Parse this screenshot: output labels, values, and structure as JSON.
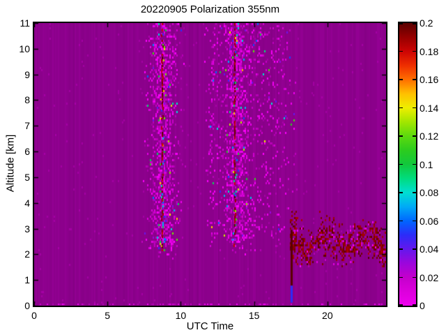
{
  "chart_data": {
    "type": "heatmap",
    "title": "20220905 Polarization 355nm",
    "xlabel": "UTC Time",
    "ylabel": "Altitude [km]",
    "xlim": [
      0,
      24
    ],
    "ylim": [
      0,
      11
    ],
    "x_ticks": [
      0,
      5,
      10,
      15,
      20
    ],
    "x_tick_labels": [
      "0",
      "5",
      "10",
      "15",
      "20"
    ],
    "y_ticks": [
      0,
      1,
      2,
      3,
      4,
      5,
      6,
      7,
      8,
      9,
      10,
      11
    ],
    "y_tick_labels": [
      "0",
      "1",
      "2",
      "3",
      "4",
      "5",
      "6",
      "7",
      "8",
      "9",
      "10",
      "11"
    ],
    "grid": false,
    "background_value_color": "#8B008B",
    "noise_seed": 20220905,
    "colorbar": {
      "position": "right",
      "min": 0,
      "max": 0.2,
      "ticks": [
        0,
        0.02,
        0.04,
        0.06,
        0.08,
        0.1,
        0.12,
        0.14,
        0.16,
        0.18,
        0.2
      ],
      "tick_labels": [
        "0",
        "0.02",
        "0.04",
        "0.06",
        "0.08",
        "0.1",
        "0.12",
        "0.14",
        "0.16",
        "0.18",
        "0.2"
      ],
      "gradient_stops": [
        {
          "at": 0.0,
          "color": "#ee00ee"
        },
        {
          "at": 0.05,
          "color": "#dc00dc"
        },
        {
          "at": 0.1,
          "color": "#c400cc"
        },
        {
          "at": 0.15,
          "color": "#9c06dc"
        },
        {
          "at": 0.2,
          "color": "#6418ec"
        },
        {
          "at": 0.25,
          "color": "#2c2cf8"
        },
        {
          "at": 0.3,
          "color": "#0066ff"
        },
        {
          "at": 0.35,
          "color": "#00aaf6"
        },
        {
          "at": 0.4,
          "color": "#00ded2"
        },
        {
          "at": 0.45,
          "color": "#00dc7e"
        },
        {
          "at": 0.5,
          "color": "#12c83c"
        },
        {
          "at": 0.55,
          "color": "#2ccc1e"
        },
        {
          "at": 0.6,
          "color": "#5cda0e"
        },
        {
          "at": 0.65,
          "color": "#a2e600"
        },
        {
          "at": 0.7,
          "color": "#eeee00"
        },
        {
          "at": 0.75,
          "color": "#ffc000"
        },
        {
          "at": 0.8,
          "color": "#ff6e00"
        },
        {
          "at": 0.85,
          "color": "#ee2e00"
        },
        {
          "at": 0.9,
          "color": "#cc0404"
        },
        {
          "at": 0.95,
          "color": "#960000"
        },
        {
          "at": 1.0,
          "color": "#5a0000"
        }
      ]
    },
    "features": {
      "background": {
        "value": 0.0,
        "description": "uniform near-zero depolarization purple field with faint vertical striping"
      },
      "plumes": [
        {
          "name": "virga-plume-1",
          "x_center": 8.75,
          "x_sigma": 0.55,
          "strength": 1.0,
          "alt_bottom_km": 1.7,
          "alt_top_km": 11,
          "core_line": true,
          "core_values": [
            0.18,
            0.2
          ],
          "speckle_values": [
            0.005,
            0.16
          ]
        },
        {
          "name": "faint-plume",
          "x_center": 12.2,
          "x_sigma": 0.28,
          "strength": 0.3,
          "alt_bottom_km": 2.0,
          "alt_top_km": 11,
          "core_line": false,
          "core_values": [
            0,
            0
          ],
          "speckle_values": [
            0.005,
            0.08
          ]
        },
        {
          "name": "virga-plume-2",
          "x_center": 13.7,
          "x_sigma": 0.5,
          "strength": 1.0,
          "alt_bottom_km": 1.7,
          "alt_top_km": 11,
          "core_line": true,
          "core_values": [
            0.18,
            0.2
          ],
          "speckle_values": [
            0.005,
            0.16
          ]
        },
        {
          "name": "faint-band-1",
          "x_center": 15.2,
          "x_sigma": 0.9,
          "strength": 0.22,
          "alt_bottom_km": 1.9,
          "alt_top_km": 11,
          "core_line": false,
          "core_values": [
            0,
            0
          ],
          "speckle_values": [
            0.005,
            0.05
          ]
        },
        {
          "name": "faint-band-2",
          "x_center": 16.9,
          "x_sigma": 0.5,
          "strength": 0.15,
          "alt_bottom_km": 1.9,
          "alt_top_km": 11,
          "core_line": false,
          "core_values": [
            0,
            0
          ],
          "speckle_values": [
            0.005,
            0.05
          ]
        }
      ],
      "boundary_layer": {
        "x_start": 17.45,
        "x_end": 24,
        "alt_center_km": 2.45,
        "alt_min_km": 1.55,
        "alt_max_km": 3.7,
        "value_range": [
          0.185,
          0.2
        ],
        "density": 0.55
      },
      "surface_spike": {
        "x": 17.55,
        "high_segment": {
          "alt_km": [
            0.78,
            2.95
          ],
          "value": 0.2
        },
        "blue_segment": {
          "alt_km": [
            0.12,
            0.78
          ],
          "value": 0.05
        }
      },
      "surface_row": {
        "alt_below_km": 0.12,
        "speckle_values": [
          0.005,
          0.02
        ]
      }
    }
  }
}
